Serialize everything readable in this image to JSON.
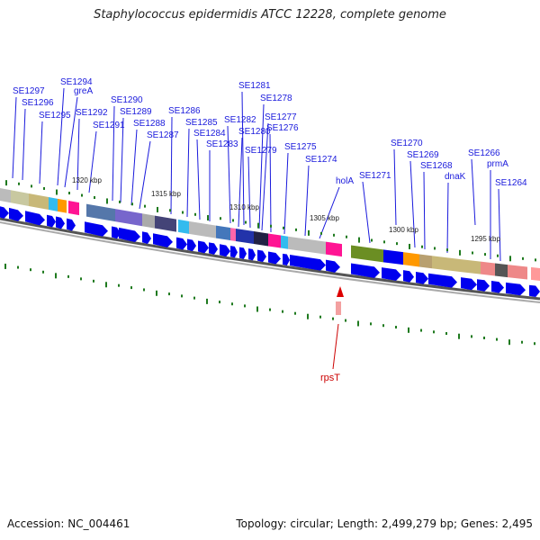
{
  "title": "Staphylococcus epidermidis ATCC 12228, complete genome",
  "footer": {
    "accession": "Accession: NC_004461",
    "topology": "Topology: circular; Length: 2,499,279 bp; Genes: 2,495"
  },
  "colors": {
    "label": "#1a1adc",
    "label_highlight": "#cc0000",
    "arrow": "#0000ee",
    "tick": "#1f7a1f",
    "backbone": "#7a7a7a"
  },
  "kbp_marks": [
    "1320 kbp",
    "1315 kbp",
    "1310 kbp",
    "1305 kbp",
    "1300 kbp",
    "1295 kbp"
  ],
  "gene_labels": [
    {
      "name": "SE1297"
    },
    {
      "name": "SE1296"
    },
    {
      "name": "SE1295"
    },
    {
      "name": "SE1294"
    },
    {
      "name": "greA"
    },
    {
      "name": "SE1292"
    },
    {
      "name": "SE1291"
    },
    {
      "name": "SE1290"
    },
    {
      "name": "SE1289"
    },
    {
      "name": "SE1288"
    },
    {
      "name": "SE1287"
    },
    {
      "name": "SE1286"
    },
    {
      "name": "SE1285"
    },
    {
      "name": "SE1284"
    },
    {
      "name": "SE1283"
    },
    {
      "name": "SE1282"
    },
    {
      "name": "SE1281"
    },
    {
      "name": "SE1280"
    },
    {
      "name": "SE1279"
    },
    {
      "name": "SE1278"
    },
    {
      "name": "SE1277"
    },
    {
      "name": "SE1276"
    },
    {
      "name": "SE1275"
    },
    {
      "name": "SE1274"
    },
    {
      "name": "holA"
    },
    {
      "name": "SE1271"
    },
    {
      "name": "SE1270"
    },
    {
      "name": "SE1269"
    },
    {
      "name": "SE1268"
    },
    {
      "name": "dnaK"
    },
    {
      "name": "SE1266"
    },
    {
      "name": "prmA"
    },
    {
      "name": "SE1264"
    }
  ],
  "highlight_gene": {
    "name": "rpsT"
  }
}
